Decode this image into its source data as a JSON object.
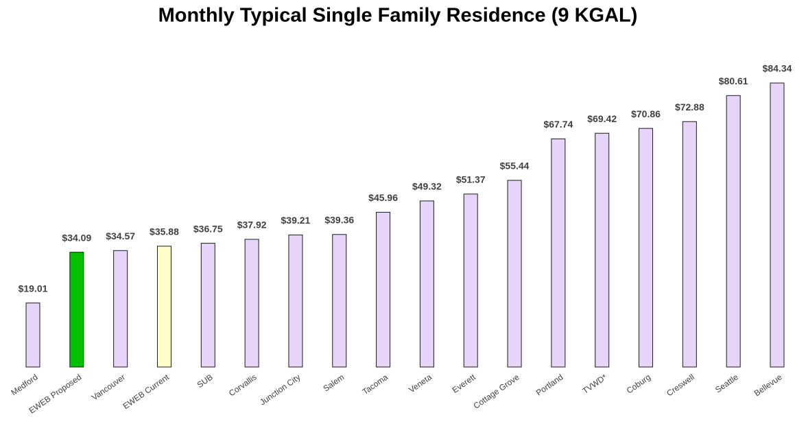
{
  "chart_data": {
    "type": "bar",
    "title": "Monthly Typical Single Family Residence  (9 KGAL)",
    "categories": [
      "Medford",
      "EWEB Proposed",
      "Vancouver",
      "EWEB Current",
      "SUB",
      "Corvallis",
      "Junction City",
      "Salem",
      "Tacoma",
      "Veneta",
      "Everett",
      "Cottage Grove",
      "Portland",
      "TVWD*",
      "Coburg",
      "Creswell",
      "Seattle",
      "Bellevue"
    ],
    "values": [
      19.01,
      34.09,
      34.57,
      35.88,
      36.75,
      37.92,
      39.21,
      39.36,
      45.96,
      49.32,
      51.37,
      55.44,
      67.74,
      69.42,
      70.86,
      72.88,
      80.61,
      84.34
    ],
    "value_labels": [
      "$19.01",
      "$34.09",
      "$34.57",
      "$35.88",
      "$36.75",
      "$37.92",
      "$39.21",
      "$39.36",
      "$45.96",
      "$49.32",
      "$51.37",
      "$55.44",
      "$67.74",
      "$69.42",
      "$70.86",
      "$72.88",
      "$80.61",
      "$84.34"
    ],
    "colors": [
      "#e6d5f8",
      "#00c000",
      "#e6d5f8",
      "#ffffcc",
      "#e6d5f8",
      "#e6d5f8",
      "#e6d5f8",
      "#e6d5f8",
      "#e6d5f8",
      "#e6d5f8",
      "#e6d5f8",
      "#e6d5f8",
      "#e6d5f8",
      "#e6d5f8",
      "#e6d5f8",
      "#e6d5f8",
      "#e6d5f8",
      "#e6d5f8"
    ]
  }
}
